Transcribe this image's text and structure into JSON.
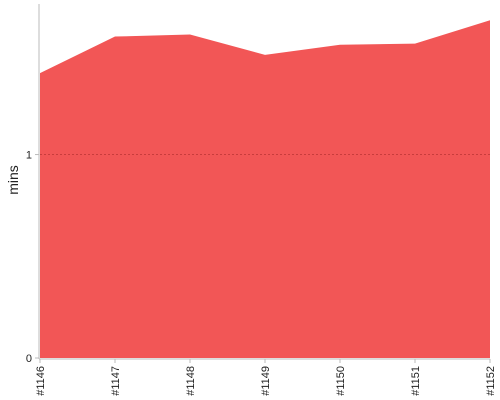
{
  "chart_data": {
    "type": "area",
    "title": "",
    "xlabel": "",
    "ylabel": "mins",
    "categories": [
      "#1146",
      "#1147",
      "#1148",
      "#1149",
      "#1150",
      "#1151",
      "#1152"
    ],
    "series": [
      {
        "values": [
          1.4,
          1.58,
          1.59,
          1.49,
          1.54,
          1.545,
          1.66
        ]
      }
    ],
    "ylim": [
      0,
      1.74
    ],
    "yticks": [
      0,
      1
    ],
    "ytick_labels": [
      "0",
      "1"
    ],
    "grid": "y-dotted",
    "legend": "none",
    "colors": {
      "fill": "#f25656",
      "grid": "#c83c3c",
      "axis": "#bbbbbb"
    }
  }
}
